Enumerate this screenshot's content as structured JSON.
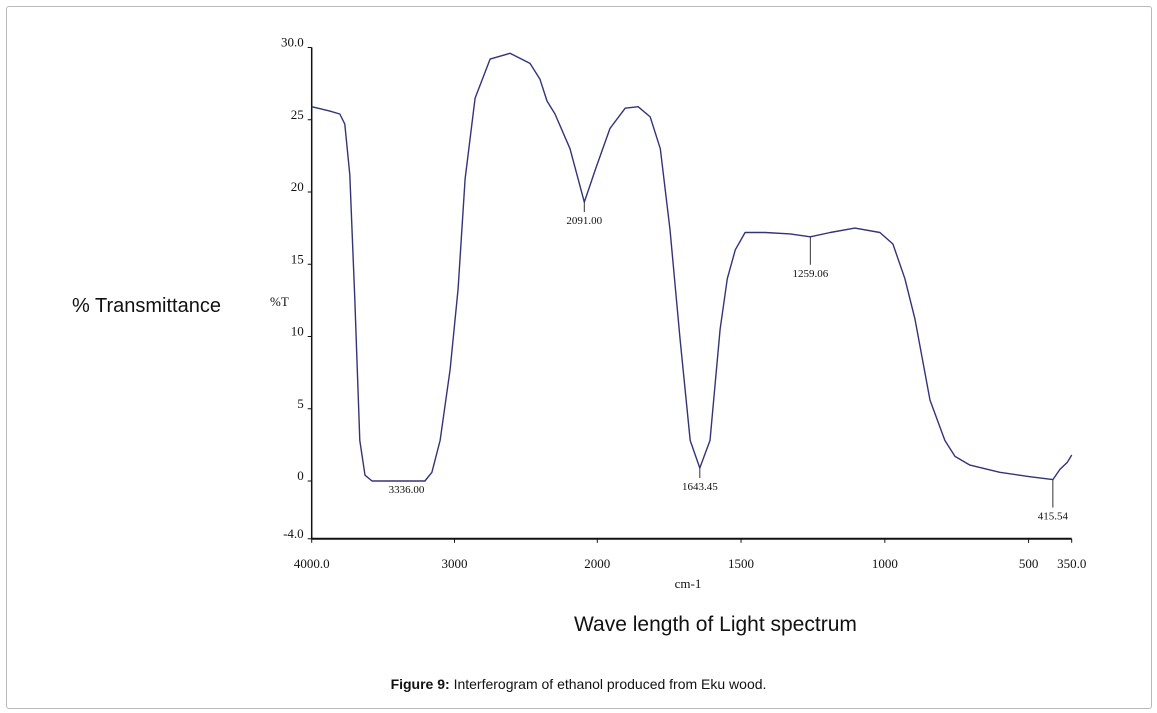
{
  "outer_labels": {
    "y_title": "% Transmittance",
    "x_title": "Wave length of Light spectrum"
  },
  "caption": {
    "label": "Figure 9:",
    "text": " Interferogram of ethanol produced from Eku wood."
  },
  "chart_data": {
    "type": "line",
    "title": "",
    "xlabel": "cm-1",
    "ylabel": "%T",
    "xlim": [
      4000,
      350
    ],
    "ylim": [
      -4,
      30
    ],
    "x_scale_note": "x axis reversed; 4000–2000 compressed to half scale",
    "grid": false,
    "y_ticks": [
      30,
      25,
      20,
      15,
      10,
      5,
      0,
      -4
    ],
    "y_tick_labels": [
      "30.0",
      "25",
      "20",
      "15",
      "10",
      "5",
      "0",
      "-4.0"
    ],
    "x_ticks": [
      4000,
      3000,
      2000,
      1500,
      1000,
      500,
      350
    ],
    "x_tick_labels": [
      "4000.0",
      "3000",
      "2000",
      "1500",
      "1000",
      "500",
      "350.0"
    ],
    "line_color": "#33337a",
    "series": [
      {
        "name": "%T",
        "points": [
          [
            4000,
            25.9
          ],
          [
            3873,
            25.6
          ],
          [
            3803,
            25.4
          ],
          [
            3768,
            24.7
          ],
          [
            3733,
            21.2
          ],
          [
            3698,
            12.6
          ],
          [
            3663,
            2.8
          ],
          [
            3627,
            0.4
          ],
          [
            3578,
            0
          ],
          [
            3336,
            0
          ],
          [
            3207,
            0
          ],
          [
            3158,
            0.6
          ],
          [
            3101,
            2.8
          ],
          [
            3031,
            7.7
          ],
          [
            2975,
            13.3
          ],
          [
            2926,
            20.9
          ],
          [
            2856,
            26.5
          ],
          [
            2751,
            29.2
          ],
          [
            2611,
            29.6
          ],
          [
            2471,
            28.9
          ],
          [
            2401,
            27.8
          ],
          [
            2352,
            26.3
          ],
          [
            2296,
            25.4
          ],
          [
            2191,
            23.0
          ],
          [
            2091,
            19.3
          ],
          [
            2012,
            21.6
          ],
          [
            1956,
            24.4
          ],
          [
            1903,
            25.8
          ],
          [
            1858,
            25.9
          ],
          [
            1816,
            25.2
          ],
          [
            1781,
            23.0
          ],
          [
            1747,
            17.4
          ],
          [
            1712,
            9.8
          ],
          [
            1677,
            2.8
          ],
          [
            1643.45,
            0.9
          ],
          [
            1608,
            2.8
          ],
          [
            1573,
            10.5
          ],
          [
            1548,
            14.0
          ],
          [
            1520,
            16.0
          ],
          [
            1486,
            17.2
          ],
          [
            1416,
            17.2
          ],
          [
            1329,
            17.1
          ],
          [
            1259.06,
            16.9
          ],
          [
            1190,
            17.2
          ],
          [
            1104,
            17.5
          ],
          [
            1017,
            17.2
          ],
          [
            972,
            16.4
          ],
          [
            930,
            14.0
          ],
          [
            895,
            11.2
          ],
          [
            843,
            5.6
          ],
          [
            791,
            2.8
          ],
          [
            756,
            1.7
          ],
          [
            704,
            1.1
          ],
          [
            600,
            0.6
          ],
          [
            496,
            0.3
          ],
          [
            415.54,
            0.1
          ],
          [
            391,
            0.8
          ],
          [
            365,
            1.3
          ],
          [
            350,
            1.8
          ]
        ]
      }
    ],
    "annotations": [
      {
        "x": 3336.0,
        "y": 0,
        "label": "3336.00"
      },
      {
        "x": 2091.0,
        "y": 19.3,
        "label": "2091.00"
      },
      {
        "x": 1643.45,
        "y": 0.9,
        "label": "1643.45"
      },
      {
        "x": 1259.06,
        "y": 16.9,
        "label": "1259.06"
      },
      {
        "x": 415.54,
        "y": 0.1,
        "label": "415.54"
      }
    ]
  }
}
